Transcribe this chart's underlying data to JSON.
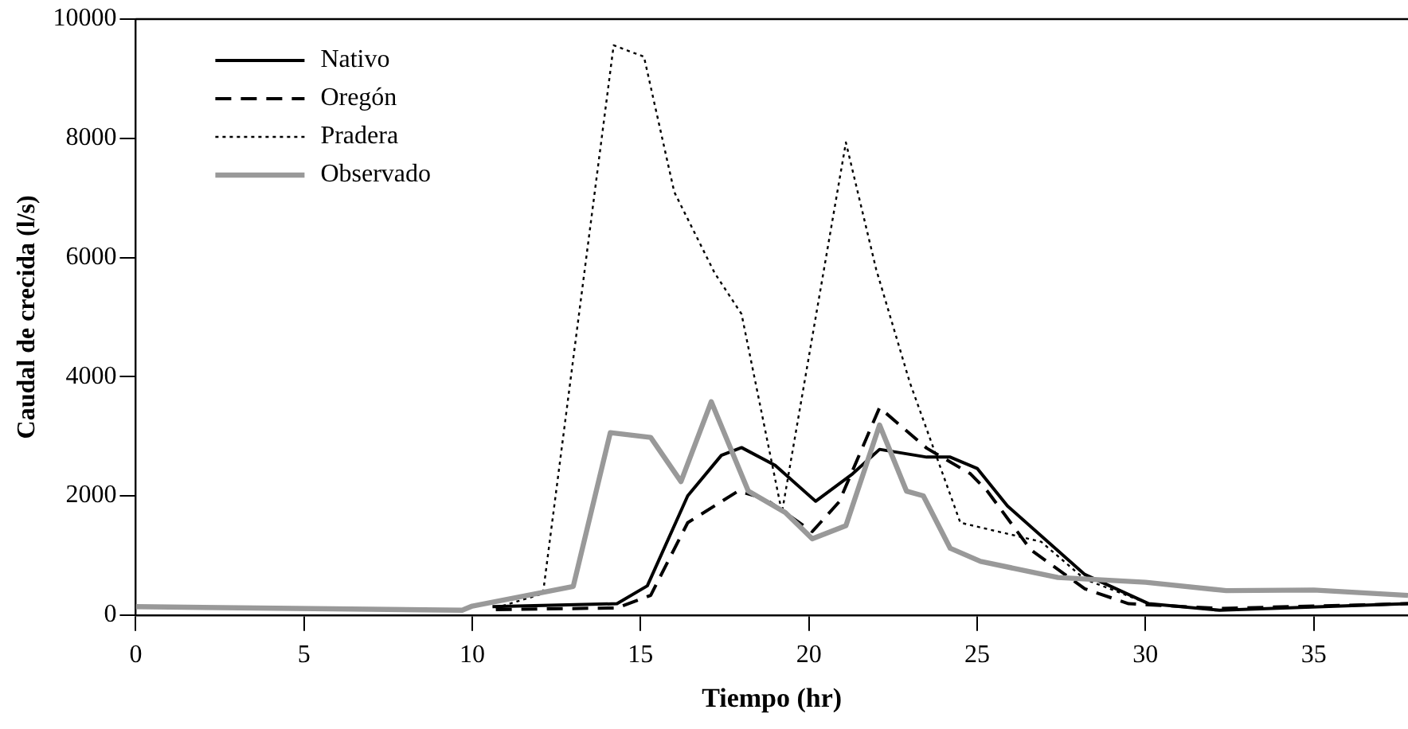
{
  "chart_data": {
    "type": "line",
    "xlabel": "Tiempo (hr)",
    "ylabel": "Caudal de crecida (l/s)",
    "xlim": [
      0,
      37.8
    ],
    "xticks": [
      0,
      5,
      10,
      15,
      20,
      25,
      30,
      35
    ],
    "ylim": [
      0,
      10000
    ],
    "yticks": [
      0,
      2000,
      4000,
      6000,
      8000,
      10000
    ],
    "grid": false,
    "legend": "top left",
    "marker": "none",
    "series": [
      {
        "name": "Nativo",
        "color": "#000000",
        "line_style": "solid",
        "x": [
          10.6,
          14.3,
          15.2,
          16.4,
          17.4,
          18,
          19,
          20.2,
          21.3,
          22.1,
          23.5,
          24.2,
          25,
          25.9,
          28.2,
          30.1,
          32.2,
          37.8
        ],
        "values": [
          140,
          190,
          490,
          2000,
          2680,
          2810,
          2510,
          1910,
          2370,
          2780,
          2650,
          2650,
          2460,
          1830,
          680,
          190,
          80,
          190
        ]
      },
      {
        "name": "Oregón",
        "color": "#000000",
        "line_style": "dashed",
        "x": [
          10.7,
          14.3,
          15.3,
          16.4,
          17.9,
          18.7,
          20.1,
          20.9,
          22.1,
          23.5,
          24.8,
          25.3,
          26.6,
          28.2,
          29.5,
          32.2,
          37.8
        ],
        "values": [
          90,
          120,
          330,
          1550,
          2080,
          1950,
          1400,
          1900,
          3480,
          2800,
          2370,
          2080,
          1090,
          440,
          190,
          110,
          190
        ]
      },
      {
        "name": "Pradera",
        "color": "#000000",
        "line_style": "dotted",
        "x": [
          10.7,
          12.1,
          14.2,
          15.1,
          16,
          17.2,
          18,
          19.2,
          21.1,
          22,
          23,
          24.5,
          26.9,
          28.2,
          30.1,
          32.2,
          37.8
        ],
        "values": [
          120,
          360,
          9560,
          9370,
          7100,
          5740,
          5050,
          1720,
          7930,
          5800,
          3900,
          1550,
          1230,
          600,
          190,
          80,
          190
        ]
      },
      {
        "name": "Observado",
        "color": "#999999",
        "line_style": "solid",
        "x": [
          0,
          9.7,
          10,
          13,
          14.1,
          15.3,
          16.2,
          17.1,
          18.2,
          19.3,
          20.1,
          21.1,
          22.1,
          22.9,
          23.4,
          24.2,
          25.1,
          27.4,
          30,
          32.4,
          35,
          37.8
        ],
        "values": [
          140,
          80,
          150,
          480,
          3060,
          2980,
          2240,
          3580,
          2080,
          1720,
          1280,
          1500,
          3190,
          2080,
          2000,
          1120,
          900,
          630,
          550,
          410,
          420,
          330
        ]
      }
    ]
  }
}
